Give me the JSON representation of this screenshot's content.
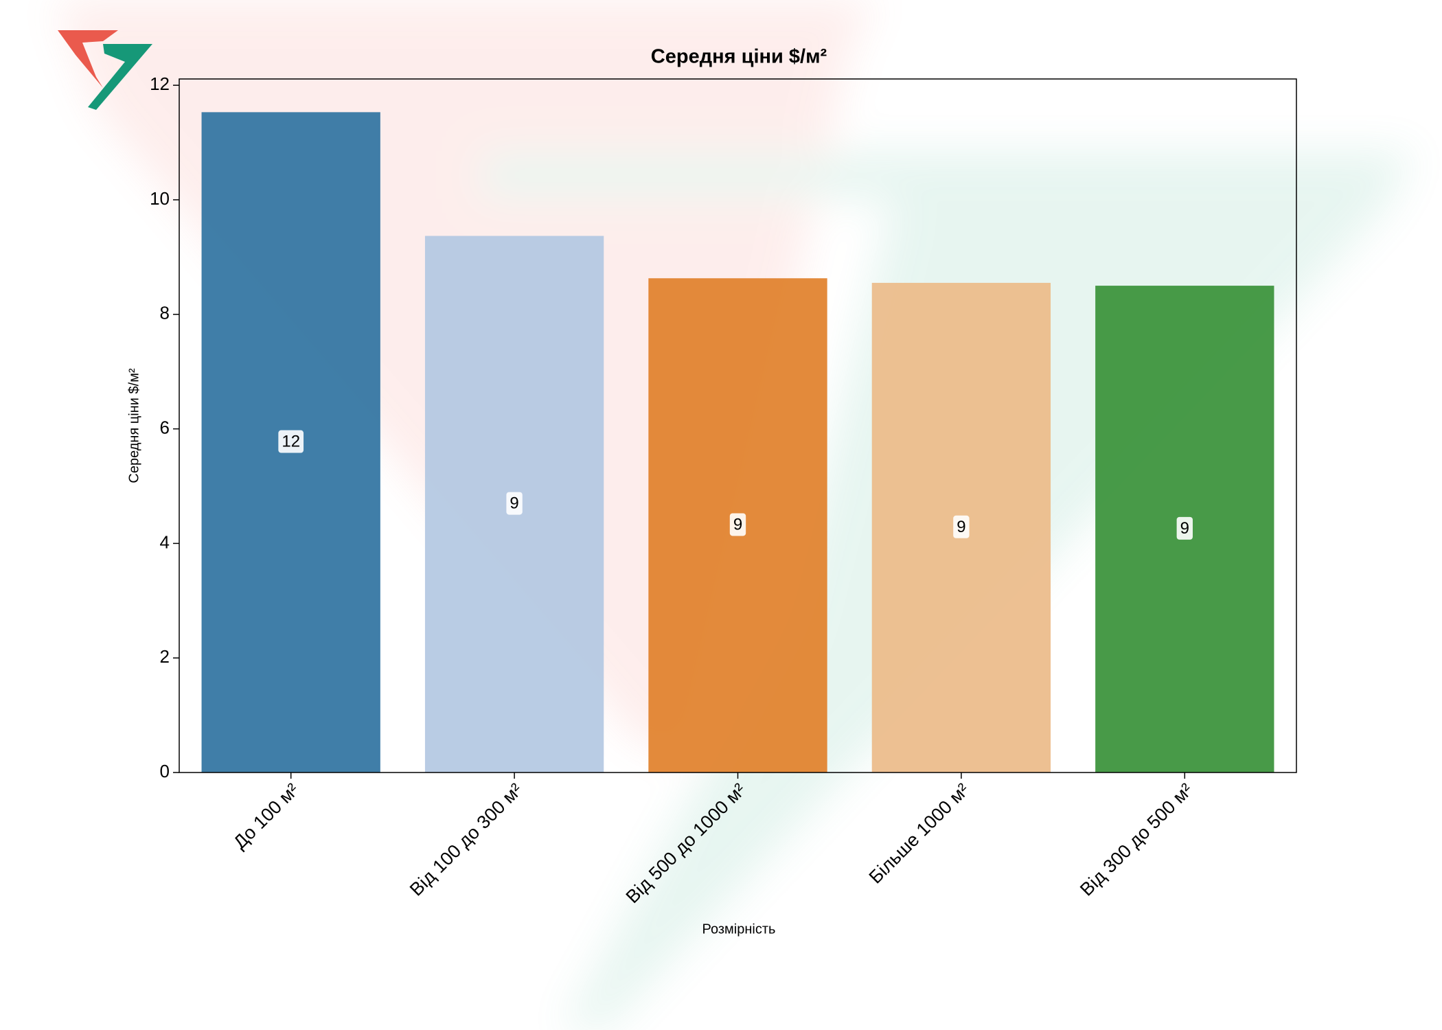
{
  "chart_data": {
    "type": "bar",
    "title": "Середня ціни $/м²",
    "x_label": "Розмірність",
    "y_label": "Середня ціни $/м²",
    "categories": [
      "До  100 м²",
      "Від 100 до 300 м²",
      "Від 500 до 1000 м²",
      "Більше 1000 м²",
      "Від 300 до 500 м²"
    ],
    "values": [
      11.53,
      9.37,
      8.63,
      8.55,
      8.5
    ],
    "value_labels": [
      "12",
      "9",
      "9",
      "9",
      "9"
    ],
    "colors": [
      "#3274a1",
      "#b4c8e2",
      "#e1812c",
      "#ecbb8a",
      "#3a923a"
    ],
    "ylim": [
      0,
      12.11
    ],
    "yticks": [
      0,
      2,
      4,
      6,
      8,
      10,
      12
    ],
    "grid": false
  }
}
